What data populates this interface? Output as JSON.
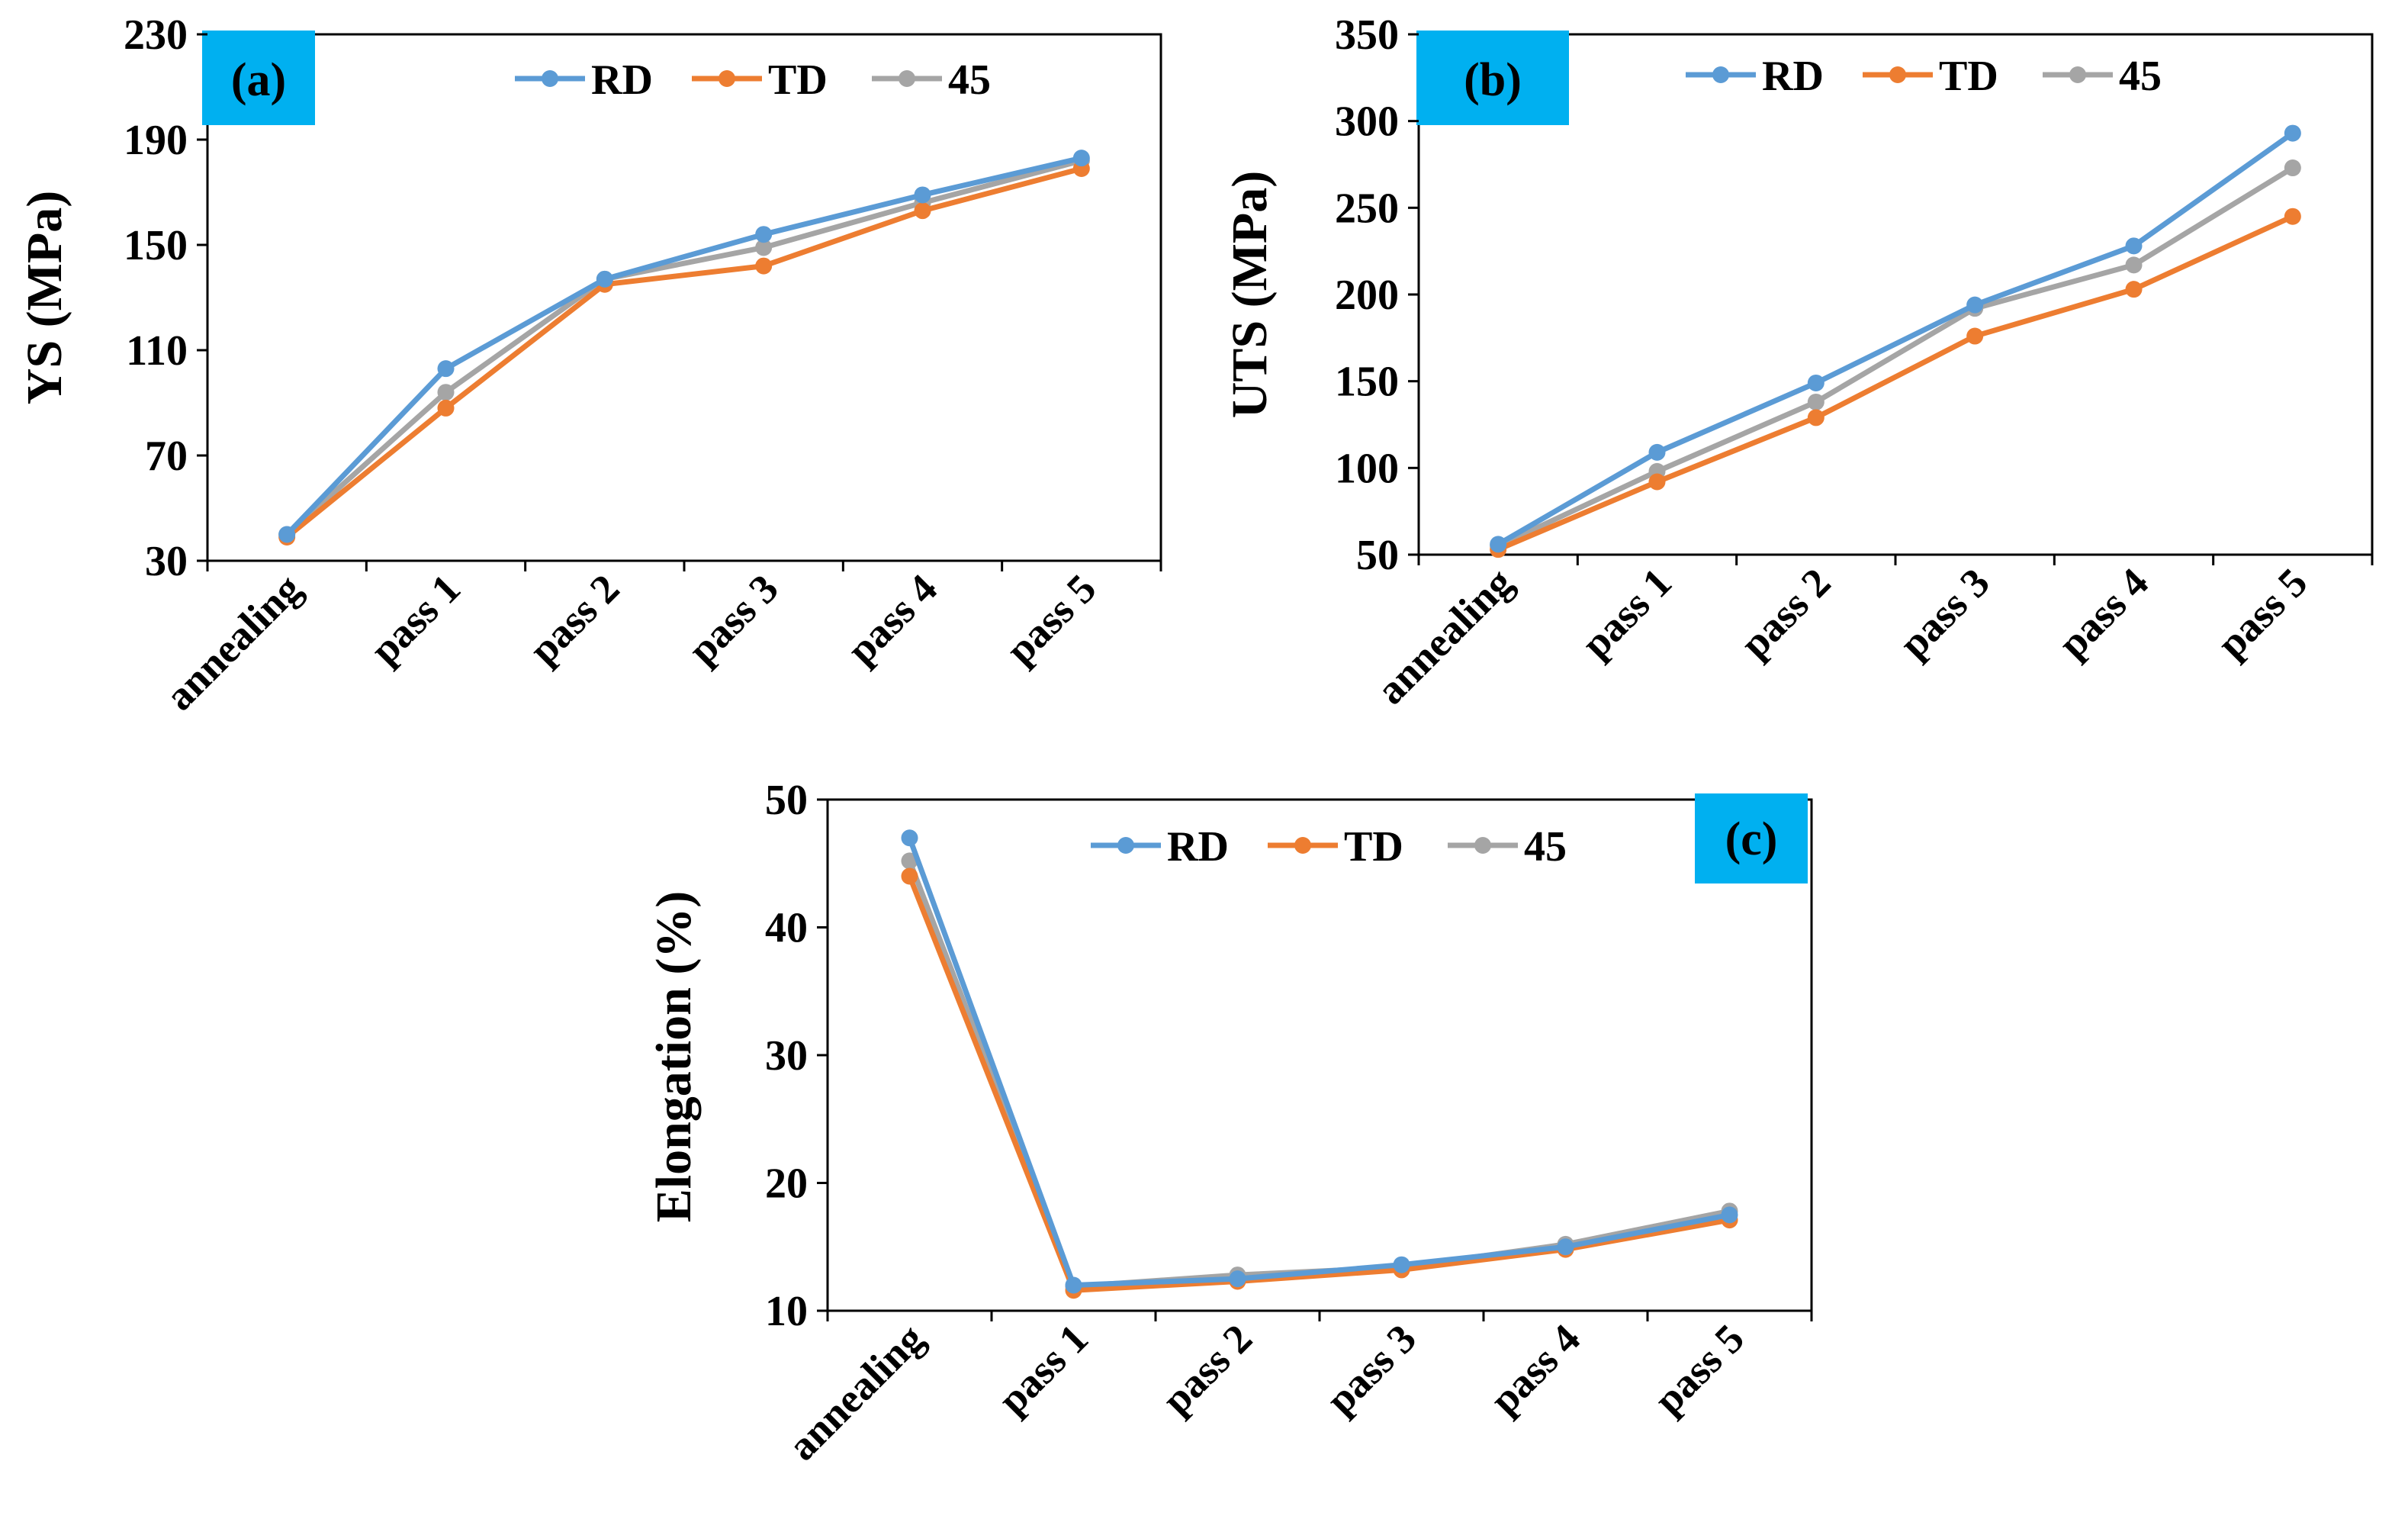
{
  "colors": {
    "RD": "#5b9bd5",
    "TD": "#ed7d31",
    "45": "#a5a5a5",
    "label_box": "#00b0f0"
  },
  "chart_data": [
    {
      "type": "line",
      "panel_label": "(a)",
      "ylabel": "YS (MPa)",
      "ylim": [
        30,
        230
      ],
      "yticks": [
        30,
        70,
        110,
        150,
        190,
        230
      ],
      "categories": [
        "annealing",
        "pass 1",
        "pass 2",
        "pass 3",
        "pass 4",
        "pass 5"
      ],
      "legend_position": "top-center",
      "series": [
        {
          "name": "RD",
          "values": [
            40,
            103,
            137,
            154,
            169,
            183
          ]
        },
        {
          "name": "TD",
          "values": [
            39,
            88,
            135,
            142,
            163,
            179
          ]
        },
        {
          "name": "45",
          "values": [
            40,
            94,
            137,
            149,
            166,
            182
          ]
        }
      ]
    },
    {
      "type": "line",
      "panel_label": "(b)",
      "ylabel": "UTS (MPa)",
      "ylim": [
        50,
        350
      ],
      "yticks": [
        50,
        100,
        150,
        200,
        250,
        300,
        350
      ],
      "categories": [
        "annealing",
        "pass 1",
        "pass 2",
        "pass 3",
        "pass 4",
        "pass 5"
      ],
      "legend_position": "top-center",
      "series": [
        {
          "name": "RD",
          "values": [
            56,
            109,
            149,
            194,
            228,
            293
          ]
        },
        {
          "name": "TD",
          "values": [
            53,
            92,
            129,
            176,
            203,
            245
          ]
        },
        {
          "name": "45",
          "values": [
            55,
            98,
            138,
            192,
            217,
            273
          ]
        }
      ]
    },
    {
      "type": "line",
      "panel_label": "(c)",
      "ylabel": "Elongation (%)",
      "ylim": [
        10,
        50
      ],
      "yticks": [
        10,
        20,
        30,
        40,
        50
      ],
      "categories": [
        "annealing",
        "pass 1",
        "pass 2",
        "pass 3",
        "pass 4",
        "pass 5"
      ],
      "legend_position": "top-center",
      "series": [
        {
          "name": "RD",
          "values": [
            47,
            12,
            12.5,
            13.6,
            15,
            17.5
          ]
        },
        {
          "name": "TD",
          "values": [
            44,
            11.6,
            12.3,
            13.2,
            14.8,
            17.1
          ]
        },
        {
          "name": "45",
          "values": [
            45.2,
            11.9,
            12.8,
            13.4,
            15.2,
            17.8
          ]
        }
      ]
    }
  ]
}
